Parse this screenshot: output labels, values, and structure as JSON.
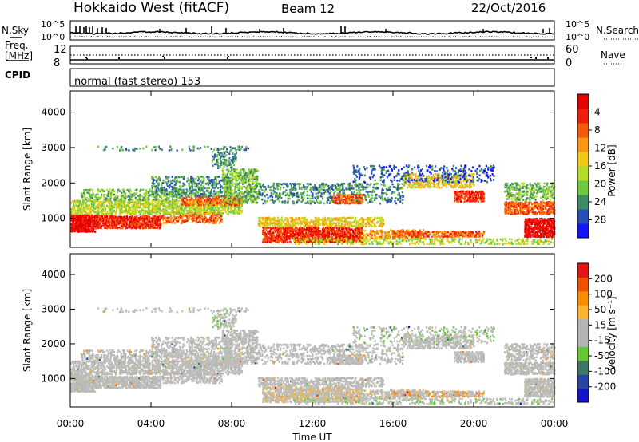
{
  "header": {
    "radar": "Hokkaido West (fitACF)",
    "beam": "Beam 12",
    "date": "22/Oct/2016"
  },
  "top_panels": {
    "nsky_label": "N.Sky",
    "nsearch_label": "N.Search",
    "noise_ticks": [
      "10^5",
      "10^0"
    ],
    "freq_label_1": "Freq.",
    "freq_label_2": "[MHz]",
    "freq_ticks": [
      "12",
      "8"
    ],
    "nave_label": "Nave",
    "nave_ticks": [
      "60",
      "0"
    ],
    "cpid_label": "CPID",
    "cpid_text": "normal (fast stereo) 153"
  },
  "chart_data": [
    {
      "type": "heatmap",
      "name": "power",
      "ylabel": "Slant Range [km]",
      "yticks": [
        1000,
        2000,
        3000,
        4000
      ],
      "ylim": [
        180,
        4600
      ],
      "xticks": [
        "00:00",
        "04:00",
        "08:00",
        "12:00",
        "16:00",
        "20:00",
        "00:00"
      ],
      "xlim_hours": [
        0,
        24
      ],
      "colorbar": {
        "label": "Power [dB]",
        "ticks": [
          "4",
          "8",
          "12",
          "16",
          "20",
          "24",
          "28"
        ],
        "colors": [
          "#1414ff",
          "#2850b4",
          "#3c8c64",
          "#6ec83c",
          "#b4dc28",
          "#f0c814",
          "#fa9614",
          "#f55a0a",
          "#f01e0a",
          "#e60000"
        ]
      }
    },
    {
      "type": "heatmap",
      "name": "velocity",
      "ylabel": "Slant Range [km]",
      "yticks": [
        1000,
        2000,
        3000,
        4000
      ],
      "ylim": [
        180,
        4600
      ],
      "xticks": [
        "00:00",
        "04:00",
        "08:00",
        "12:00",
        "16:00",
        "20:00",
        "00:00"
      ],
      "xlabel": "Time UT",
      "colorbar": {
        "label": "Velocity [m s⁻¹]",
        "ticks": [
          "200",
          "100",
          "50",
          "15",
          "-15",
          "-50",
          "-100",
          "-200"
        ],
        "colors": [
          "#1414c8",
          "#2846a0",
          "#3c7864",
          "#64c832",
          "#b4b4b4",
          "#b4b4b4",
          "#fab432",
          "#fa8c00",
          "#f05000",
          "#e61414"
        ]
      }
    }
  ]
}
